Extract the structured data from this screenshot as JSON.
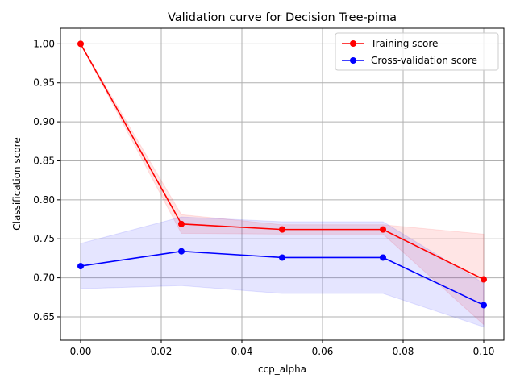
{
  "chart_data": {
    "type": "line",
    "title": "Validation curve for Decision Tree-pima",
    "xlabel": "ccp_alpha",
    "ylabel": "Classification score",
    "xlim": [
      -0.005,
      0.105
    ],
    "ylim": [
      0.62,
      1.02
    ],
    "grid": true,
    "legend_position": "top-right",
    "xticks": [
      0.0,
      0.02,
      0.04,
      0.06,
      0.08,
      0.1
    ],
    "xtick_labels": [
      "0.00",
      "0.02",
      "0.04",
      "0.06",
      "0.08",
      "0.10"
    ],
    "yticks": [
      0.65,
      0.7,
      0.75,
      0.8,
      0.85,
      0.9,
      0.95,
      1.0
    ],
    "ytick_labels": [
      "0.65",
      "0.70",
      "0.75",
      "0.80",
      "0.85",
      "0.90",
      "0.95",
      "1.00"
    ],
    "x": [
      0.0,
      0.025,
      0.05,
      0.075,
      0.1
    ],
    "series": [
      {
        "name": "Training score",
        "color": "#ff0000",
        "values": [
          1.0,
          0.769,
          0.762,
          0.762,
          0.698
        ],
        "band_lower": [
          1.0,
          0.757,
          0.756,
          0.756,
          0.64
        ],
        "band_upper": [
          1.0,
          0.781,
          0.768,
          0.768,
          0.756
        ]
      },
      {
        "name": "Cross-validation score",
        "color": "#0000ff",
        "values": [
          0.715,
          0.734,
          0.726,
          0.726,
          0.665
        ],
        "band_lower": [
          0.686,
          0.69,
          0.68,
          0.68,
          0.637
        ],
        "band_upper": [
          0.744,
          0.778,
          0.772,
          0.772,
          0.693
        ]
      }
    ]
  }
}
